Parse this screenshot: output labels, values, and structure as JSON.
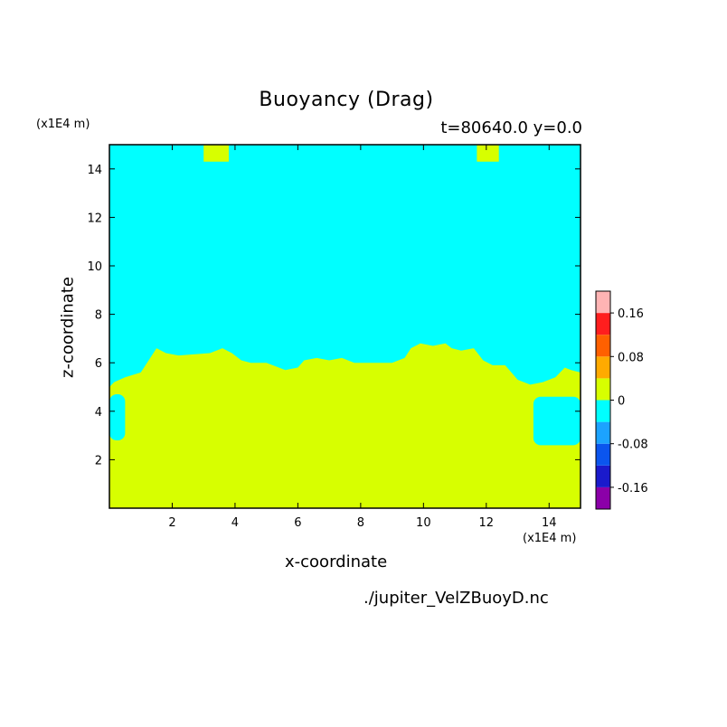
{
  "chart_data": {
    "type": "heatmap",
    "title": "Buoyancy (Drag)",
    "subtitle": "t=80640.0 y=0.0",
    "xlabel": "x-coordinate",
    "ylabel": "z-coordinate",
    "x_unit_label": "(x1E4 m)",
    "y_unit_label": "(x1E4 m)",
    "xlim": [
      0,
      15
    ],
    "ylim": [
      0,
      15
    ],
    "x_ticks": [
      2,
      4,
      6,
      8,
      10,
      12,
      14
    ],
    "y_ticks": [
      2,
      4,
      6,
      8,
      10,
      12,
      14
    ],
    "grid": false,
    "colorbar": {
      "levels": [
        -0.2,
        -0.16,
        -0.12,
        -0.08,
        -0.04,
        0,
        0.04,
        0.08,
        0.12,
        0.16,
        0.2
      ],
      "colors": [
        "#8b00a8",
        "#1a1acc",
        "#0b55ee",
        "#1ca3ff",
        "#00ffff",
        "#d7ff00",
        "#ffaa00",
        "#ff6000",
        "#ff1e1e",
        "#ffb4b4"
      ],
      "tick_labels": [
        "-0.16",
        "-0.08",
        "0",
        "0.08",
        "0.16"
      ],
      "tick_values": [
        -0.16,
        -0.08,
        0,
        0.08,
        0.16
      ]
    },
    "fields": {
      "positive_color": "#d7ff00",
      "negative_color": "#00ffff"
    },
    "boundary": {
      "description_points_x": [
        0,
        0.15,
        0.5,
        1.0,
        1.5,
        1.8,
        2.2,
        3.2,
        3.6,
        3.9,
        4.2,
        4.5,
        5.0,
        5.6,
        6.0,
        6.2,
        6.6,
        7.0,
        7.4,
        7.8,
        8.2,
        8.6,
        9.0,
        9.4,
        9.6,
        9.9,
        10.3,
        10.7,
        10.9,
        11.2,
        11.6,
        11.9,
        12.2,
        12.6,
        13.0,
        13.4,
        13.8,
        14.2,
        14.5,
        14.7,
        15.0
      ],
      "description_points_z": [
        5.0,
        5.2,
        5.4,
        5.6,
        6.6,
        6.4,
        6.3,
        6.4,
        6.6,
        6.4,
        6.1,
        6.0,
        6.0,
        5.7,
        5.8,
        6.1,
        6.2,
        6.1,
        6.2,
        6.0,
        6.0,
        6.0,
        6.0,
        6.2,
        6.6,
        6.8,
        6.7,
        6.8,
        6.6,
        6.5,
        6.6,
        6.1,
        5.9,
        5.9,
        5.3,
        5.1,
        5.2,
        5.4,
        5.8,
        5.7,
        5.6
      ]
    },
    "patches_positive": [
      {
        "x": [
          3.0,
          3.8
        ],
        "z": [
          14.3,
          15.0
        ]
      },
      {
        "x": [
          11.7,
          12.4
        ],
        "z": [
          14.3,
          15.0
        ]
      }
    ],
    "patches_negative": [
      {
        "x": [
          0,
          0.5
        ],
        "z": [
          2.8,
          4.7
        ]
      },
      {
        "x": [
          13.5,
          15.0
        ],
        "z": [
          2.6,
          4.6
        ]
      }
    ]
  },
  "footer": {
    "filename": "./jupiter_VelZBuoyD.nc"
  }
}
